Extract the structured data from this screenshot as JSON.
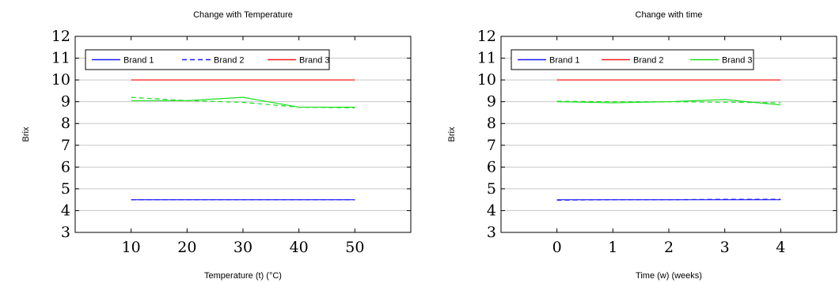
{
  "colors": {
    "blue": "#1a1aff",
    "red": "#ff1a1a",
    "green": "#1adf1a",
    "grid": "#c8c8c8"
  },
  "chart_data": [
    {
      "type": "line",
      "title": "Change with Temperature",
      "xlabel": "Temperature (t) (°C)",
      "ylabel": "Brix",
      "xlim": [
        0,
        60
      ],
      "ylim": [
        3,
        12
      ],
      "xticks": [
        10,
        20,
        30,
        40,
        50
      ],
      "yticks": [
        3,
        4,
        5,
        6,
        7,
        8,
        9,
        10,
        11,
        12
      ],
      "grid": "horizontal",
      "legend_position": "top-left",
      "x": [
        10,
        20,
        30,
        40,
        50
      ],
      "series": [
        {
          "name": "Brand 1",
          "color": "blue",
          "dash": "solid",
          "values": [
            4.5,
            4.5,
            4.5,
            4.5,
            4.5
          ]
        },
        {
          "name": "Brand 2",
          "color": "blue",
          "dash": "dashed",
          "values": [
            4.5,
            4.5,
            4.5,
            4.5,
            4.5
          ]
        },
        {
          "name": "Brand 3",
          "color": "red",
          "dash": "solid",
          "values": [
            10,
            10,
            10,
            10,
            10
          ]
        }
      ],
      "extra_series": [
        {
          "color": "green",
          "dash": "solid",
          "values": [
            9.05,
            9.05,
            9.2,
            8.75,
            8.75
          ]
        },
        {
          "color": "green",
          "dash": "dashed",
          "values": [
            9.2,
            9.05,
            8.97,
            8.75,
            8.72
          ]
        }
      ]
    },
    {
      "type": "line",
      "title": "Change with time",
      "xlabel": "Time (w) (weeks)",
      "ylabel": "Brix",
      "xlim": [
        -1,
        5
      ],
      "ylim": [
        3,
        12
      ],
      "xticks": [
        0,
        1,
        2,
        3,
        4
      ],
      "yticks": [
        3,
        4,
        5,
        6,
        7,
        8,
        9,
        10,
        11,
        12
      ],
      "grid": "horizontal",
      "legend_position": "top-left",
      "x": [
        0,
        1,
        2,
        3,
        4
      ],
      "series": [
        {
          "name": "Brand 1",
          "color": "blue",
          "dash": "solid",
          "values": [
            4.5,
            4.5,
            4.5,
            4.5,
            4.5
          ]
        },
        {
          "name": "Brand 2",
          "color": "red",
          "dash": "solid",
          "values": [
            10,
            10,
            10,
            10,
            10
          ]
        },
        {
          "name": "Brand 3",
          "color": "green",
          "dash": "solid",
          "values": [
            9.0,
            8.95,
            9.0,
            9.1,
            8.85
          ]
        }
      ],
      "extra_series": [
        {
          "color": "blue",
          "dash": "dashed",
          "values": [
            4.48,
            4.5,
            4.5,
            4.52,
            4.52
          ]
        },
        {
          "color": "green",
          "dash": "dashed",
          "values": [
            9.02,
            9.0,
            9.0,
            8.98,
            8.95
          ]
        }
      ]
    }
  ]
}
